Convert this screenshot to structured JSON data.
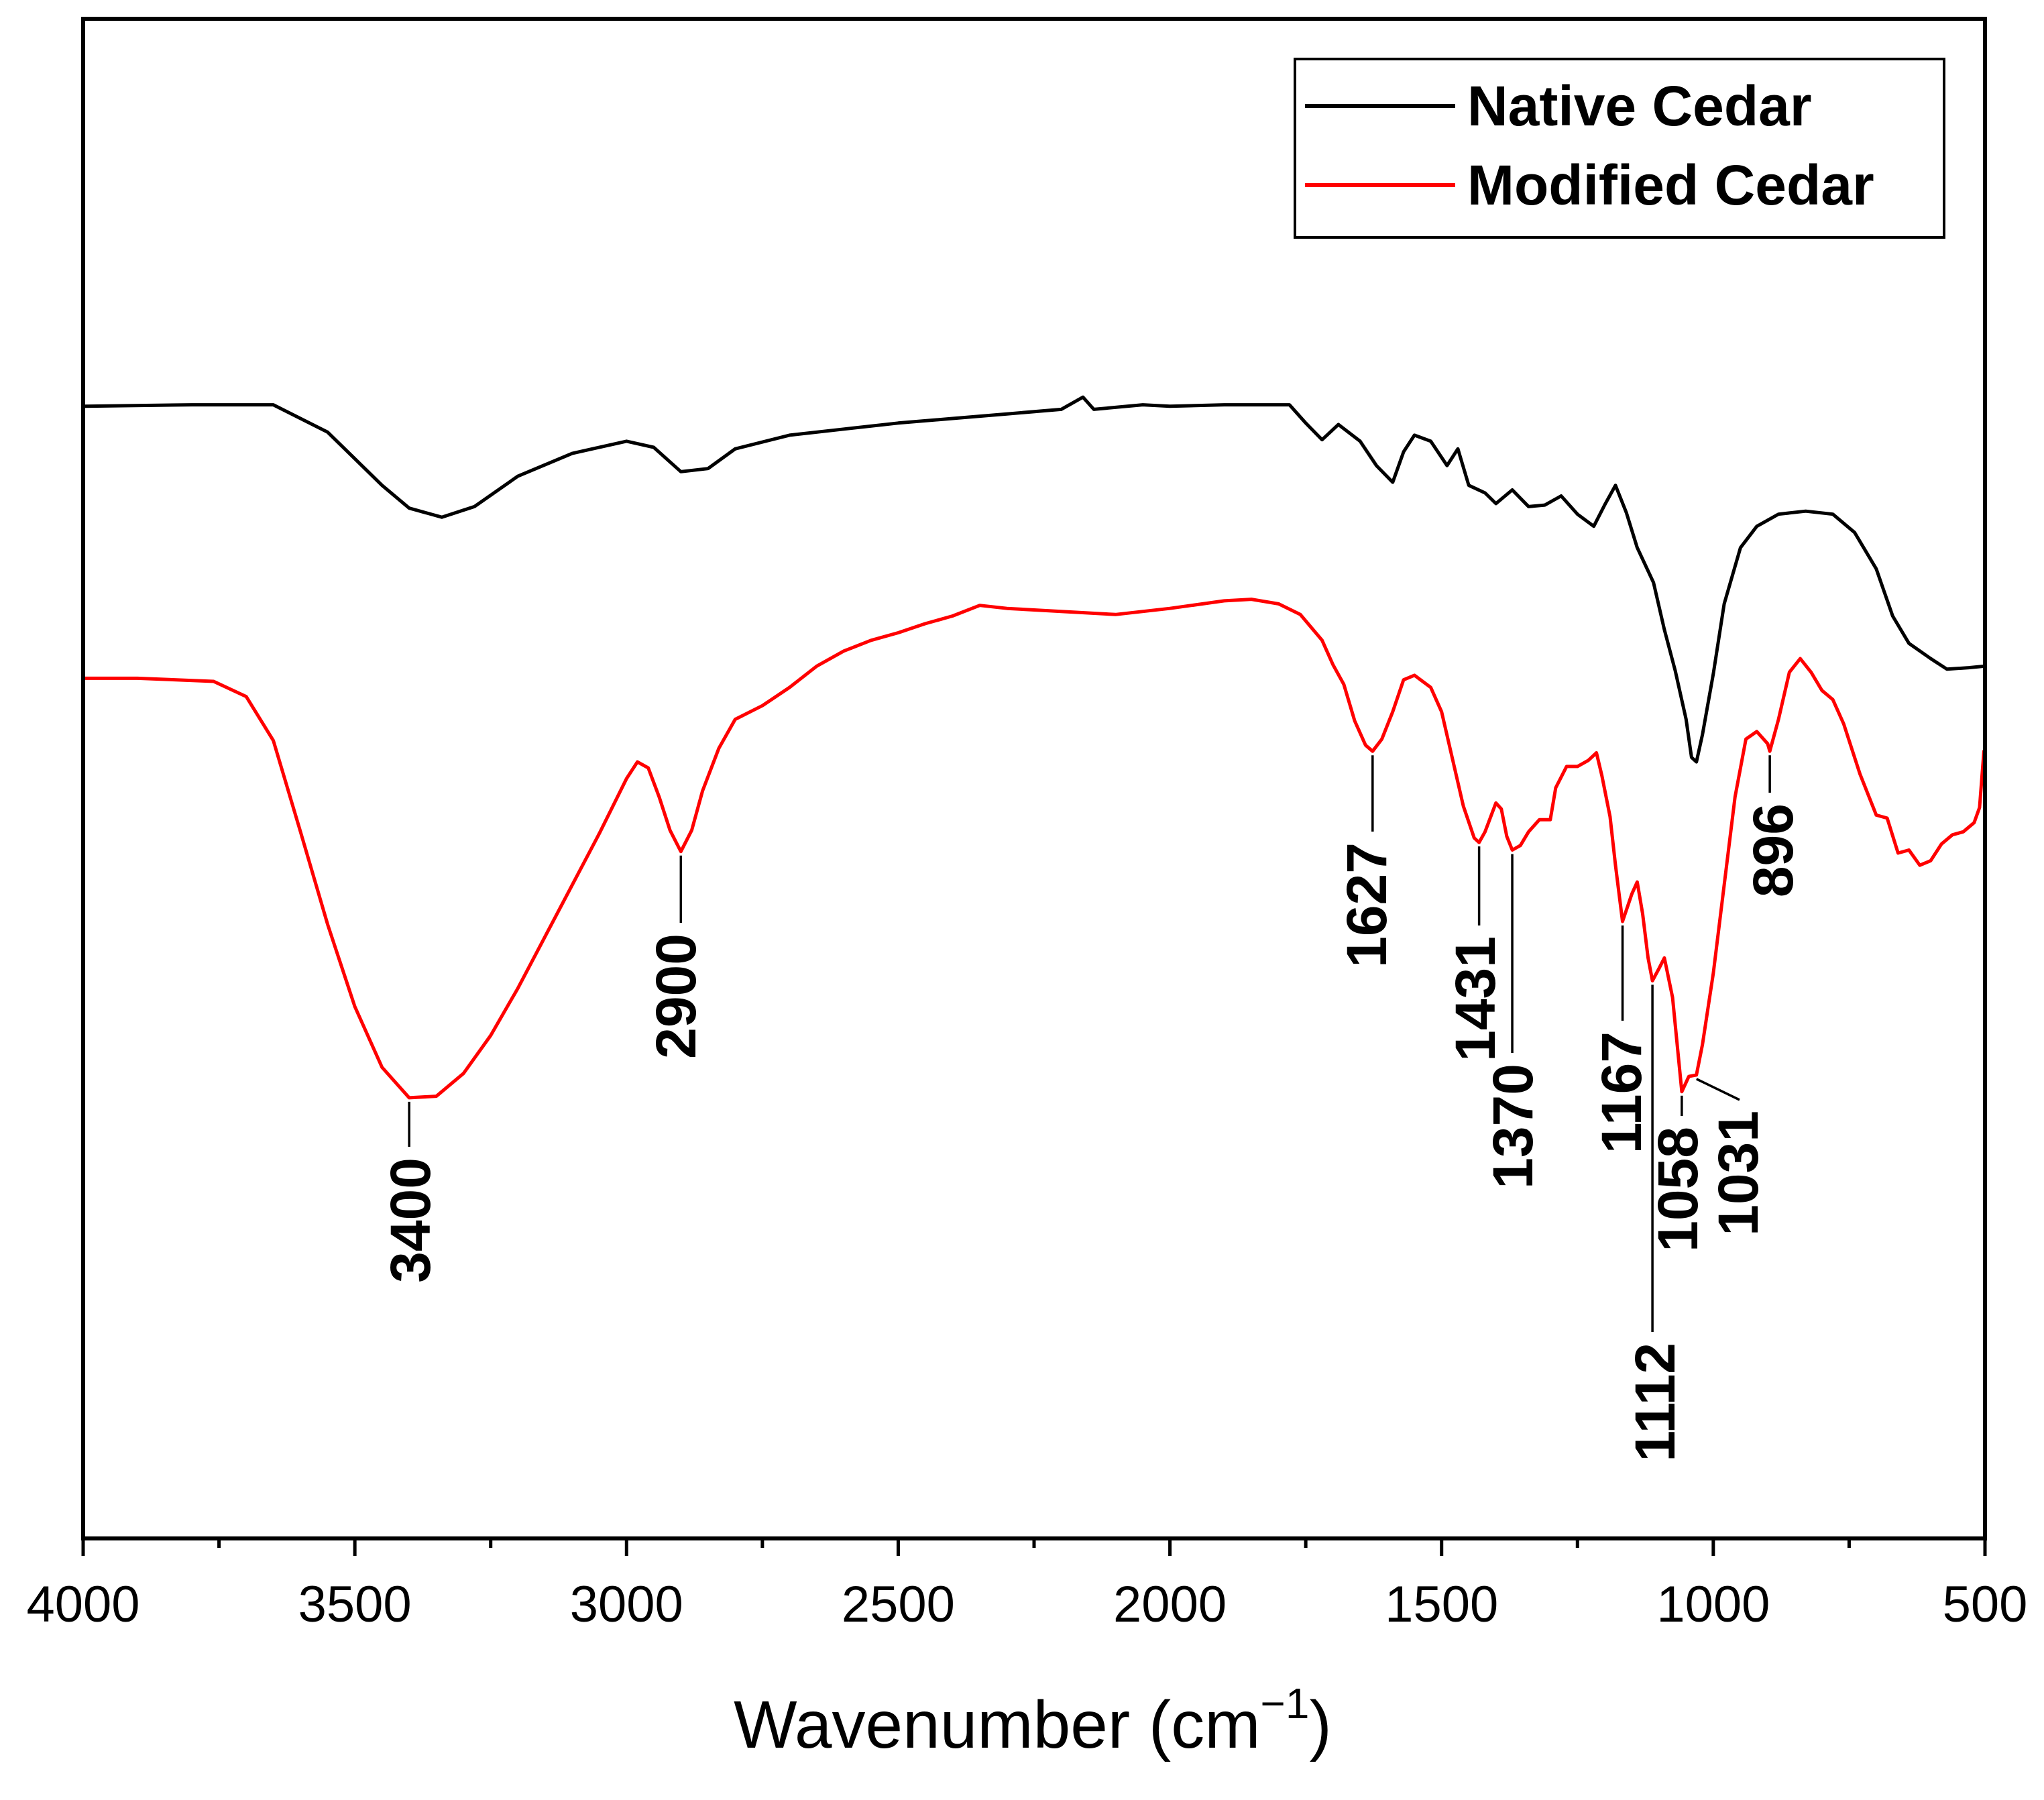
{
  "chart_data": {
    "type": "line",
    "title": "",
    "xlabel": "Wavenumber (cm",
    "xlabel_superscript": "−1",
    "xlabel_close": ")",
    "ylabel": "",
    "xlim": [
      4000,
      500
    ],
    "ylim": [
      0,
      100
    ],
    "x_ticks": [
      4000,
      3500,
      3000,
      2500,
      2000,
      1500,
      1000,
      500
    ],
    "x_tick_labels": [
      "4000",
      "3500",
      "3000",
      "2500",
      "2000",
      "1500",
      "1000",
      "500"
    ],
    "x_minor_ticks": [
      3750,
      3250,
      2750,
      2250,
      1750,
      1250,
      750
    ],
    "y_ticks": [],
    "grid": false,
    "legend_position": "top-right",
    "series": [
      {
        "name": "Native Cedar",
        "color": "#000000",
        "points": [
          [
            4000,
            74.5
          ],
          [
            3800,
            74.6
          ],
          [
            3650,
            74.6
          ],
          [
            3550,
            72.8
          ],
          [
            3450,
            69.3
          ],
          [
            3400,
            67.8
          ],
          [
            3340,
            67.2
          ],
          [
            3280,
            67.9
          ],
          [
            3200,
            69.9
          ],
          [
            3100,
            71.4
          ],
          [
            3000,
            72.2
          ],
          [
            2950,
            71.8
          ],
          [
            2900,
            70.2
          ],
          [
            2850,
            70.4
          ],
          [
            2800,
            71.7
          ],
          [
            2700,
            72.6
          ],
          [
            2600,
            73.0
          ],
          [
            2500,
            73.4
          ],
          [
            2400,
            73.7
          ],
          [
            2300,
            74.0
          ],
          [
            2200,
            74.3
          ],
          [
            2160,
            75.1
          ],
          [
            2140,
            74.3
          ],
          [
            2050,
            74.6
          ],
          [
            2000,
            74.5
          ],
          [
            1900,
            74.6
          ],
          [
            1780,
            74.6
          ],
          [
            1750,
            73.4
          ],
          [
            1720,
            72.3
          ],
          [
            1690,
            73.3
          ],
          [
            1650,
            72.2
          ],
          [
            1620,
            70.6
          ],
          [
            1590,
            69.5
          ],
          [
            1570,
            71.5
          ],
          [
            1550,
            72.6
          ],
          [
            1520,
            72.2
          ],
          [
            1490,
            70.6
          ],
          [
            1470,
            71.7
          ],
          [
            1450,
            69.3
          ],
          [
            1420,
            68.8
          ],
          [
            1400,
            68.1
          ],
          [
            1370,
            69.0
          ],
          [
            1340,
            67.9
          ],
          [
            1310,
            68.0
          ],
          [
            1280,
            68.6
          ],
          [
            1250,
            67.4
          ],
          [
            1220,
            66.6
          ],
          [
            1200,
            68.0
          ],
          [
            1180,
            69.3
          ],
          [
            1160,
            67.5
          ],
          [
            1140,
            65.2
          ],
          [
            1110,
            62.9
          ],
          [
            1090,
            59.8
          ],
          [
            1070,
            57.1
          ],
          [
            1050,
            53.9
          ],
          [
            1040,
            51.4
          ],
          [
            1031,
            51.1
          ],
          [
            1020,
            52.9
          ],
          [
            1000,
            56.9
          ],
          [
            980,
            61.5
          ],
          [
            950,
            65.2
          ],
          [
            920,
            66.6
          ],
          [
            880,
            67.4
          ],
          [
            830,
            67.6
          ],
          [
            780,
            67.4
          ],
          [
            740,
            66.2
          ],
          [
            700,
            63.8
          ],
          [
            670,
            60.7
          ],
          [
            640,
            58.9
          ],
          [
            600,
            57.9
          ],
          [
            570,
            57.2
          ],
          [
            530,
            57.3
          ],
          [
            500,
            57.4
          ]
        ]
      },
      {
        "name": "Modified Cedar",
        "color": "#ff0000",
        "points": [
          [
            4000,
            56.6
          ],
          [
            3900,
            56.6
          ],
          [
            3760,
            56.4
          ],
          [
            3700,
            55.4
          ],
          [
            3650,
            52.5
          ],
          [
            3600,
            46.5
          ],
          [
            3550,
            40.4
          ],
          [
            3500,
            35.0
          ],
          [
            3450,
            31.0
          ],
          [
            3400,
            29.0
          ],
          [
            3350,
            29.1
          ],
          [
            3300,
            30.6
          ],
          [
            3250,
            33.1
          ],
          [
            3200,
            36.2
          ],
          [
            3150,
            39.6
          ],
          [
            3100,
            43.0
          ],
          [
            3050,
            46.4
          ],
          [
            3000,
            50.0
          ],
          [
            2980,
            51.1
          ],
          [
            2960,
            50.7
          ],
          [
            2940,
            48.8
          ],
          [
            2920,
            46.6
          ],
          [
            2900,
            45.2
          ],
          [
            2880,
            46.6
          ],
          [
            2860,
            49.2
          ],
          [
            2830,
            52.0
          ],
          [
            2800,
            53.9
          ],
          [
            2750,
            54.8
          ],
          [
            2700,
            56.0
          ],
          [
            2650,
            57.4
          ],
          [
            2600,
            58.4
          ],
          [
            2550,
            59.1
          ],
          [
            2500,
            59.6
          ],
          [
            2450,
            60.2
          ],
          [
            2400,
            60.7
          ],
          [
            2350,
            61.4
          ],
          [
            2300,
            61.2
          ],
          [
            2200,
            61.0
          ],
          [
            2100,
            60.8
          ],
          [
            2000,
            61.2
          ],
          [
            1900,
            61.7
          ],
          [
            1850,
            61.8
          ],
          [
            1800,
            61.5
          ],
          [
            1760,
            60.8
          ],
          [
            1720,
            59.1
          ],
          [
            1700,
            57.5
          ],
          [
            1680,
            56.2
          ],
          [
            1660,
            53.8
          ],
          [
            1640,
            52.2
          ],
          [
            1627,
            51.8
          ],
          [
            1610,
            52.6
          ],
          [
            1590,
            54.4
          ],
          [
            1570,
            56.5
          ],
          [
            1550,
            56.8
          ],
          [
            1520,
            56.0
          ],
          [
            1500,
            54.4
          ],
          [
            1480,
            51.3
          ],
          [
            1460,
            48.2
          ],
          [
            1440,
            46.1
          ],
          [
            1431,
            45.8
          ],
          [
            1420,
            46.5
          ],
          [
            1400,
            48.4
          ],
          [
            1390,
            48.0
          ],
          [
            1380,
            46.2
          ],
          [
            1370,
            45.3
          ],
          [
            1355,
            45.6
          ],
          [
            1340,
            46.5
          ],
          [
            1320,
            47.3
          ],
          [
            1300,
            47.3
          ],
          [
            1290,
            49.4
          ],
          [
            1270,
            50.8
          ],
          [
            1250,
            50.8
          ],
          [
            1230,
            51.2
          ],
          [
            1215,
            51.7
          ],
          [
            1205,
            50.2
          ],
          [
            1190,
            47.5
          ],
          [
            1180,
            44.3
          ],
          [
            1167,
            40.6
          ],
          [
            1150,
            42.4
          ],
          [
            1140,
            43.2
          ],
          [
            1130,
            41.1
          ],
          [
            1120,
            38.2
          ],
          [
            1112,
            36.7
          ],
          [
            1100,
            37.5
          ],
          [
            1090,
            38.2
          ],
          [
            1075,
            35.6
          ],
          [
            1058,
            29.4
          ],
          [
            1045,
            30.4
          ],
          [
            1031,
            30.5
          ],
          [
            1020,
            32.5
          ],
          [
            1000,
            37.2
          ],
          [
            980,
            43.0
          ],
          [
            960,
            48.8
          ],
          [
            940,
            52.6
          ],
          [
            920,
            53.1
          ],
          [
            900,
            52.3
          ],
          [
            896,
            51.8
          ],
          [
            880,
            53.9
          ],
          [
            860,
            57.0
          ],
          [
            840,
            57.9
          ],
          [
            820,
            57.0
          ],
          [
            800,
            55.8
          ],
          [
            780,
            55.2
          ],
          [
            760,
            53.6
          ],
          [
            730,
            50.3
          ],
          [
            700,
            47.6
          ],
          [
            680,
            47.4
          ],
          [
            660,
            45.1
          ],
          [
            640,
            45.3
          ],
          [
            620,
            44.3
          ],
          [
            600,
            44.6
          ],
          [
            580,
            45.7
          ],
          [
            560,
            46.3
          ],
          [
            540,
            46.5
          ],
          [
            520,
            47.1
          ],
          [
            510,
            48.1
          ],
          [
            502,
            51.8
          ],
          [
            500,
            51.9
          ]
        ]
      }
    ],
    "annotations": [
      {
        "label": "3400",
        "x": 3400,
        "series": 1
      },
      {
        "label": "2900",
        "x": 2900,
        "series": 1
      },
      {
        "label": "1627",
        "x": 1627,
        "series": 1
      },
      {
        "label": "1431",
        "x": 1431,
        "series": 1
      },
      {
        "label": "1370",
        "x": 1370,
        "series": 1
      },
      {
        "label": "1167",
        "x": 1167,
        "series": 1
      },
      {
        "label": "1112",
        "x": 1112,
        "series": 1
      },
      {
        "label": "1058",
        "x": 1058,
        "series": 1
      },
      {
        "label": "1031",
        "x": 1031,
        "series": 1
      },
      {
        "label": "896",
        "x": 896,
        "series": 1
      }
    ]
  }
}
